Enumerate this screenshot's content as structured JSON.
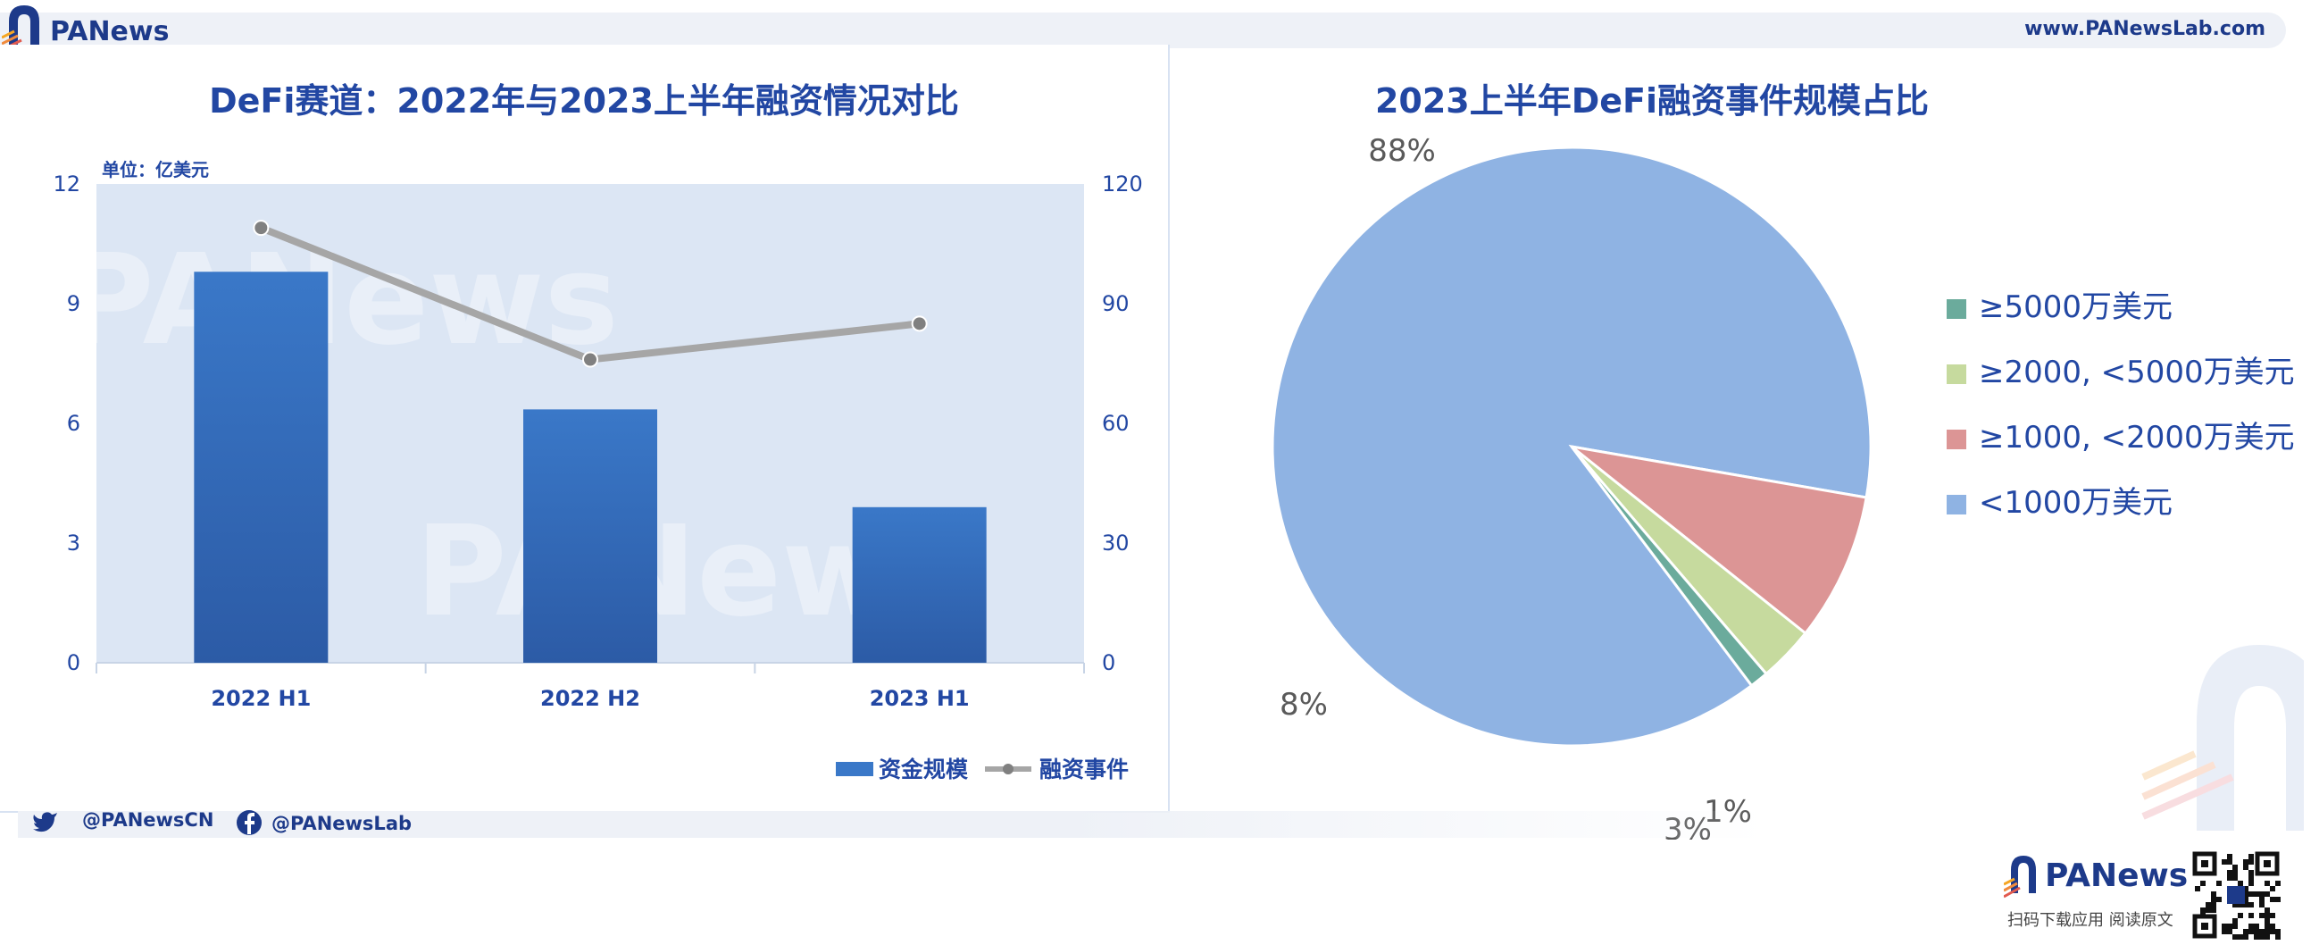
{
  "header": {
    "brand": "PANews",
    "url": "www.PANewsLab.com"
  },
  "footer": {
    "twitter": "@PANewsCN",
    "facebook": "@PANewsLab",
    "brand": "PANews",
    "caption": "扫码下载应用  阅读原文"
  },
  "watermark": "PANews",
  "colors": {
    "bar": "#3a78c8",
    "line": "#a6a6a6",
    "pie_large": "#8fb3e3",
    "pie_mid": "#dc9595",
    "pie_small": "#c6da9e",
    "pie_tiny": "#6bab9c",
    "title": "#2247a3"
  },
  "chart_data": [
    {
      "type": "bar",
      "title": "DeFi赛道：2022年与2023上半年融资情况对比",
      "unit_label": "单位：亿美元",
      "categories": [
        "2022 H1",
        "2022 H2",
        "2023 H1"
      ],
      "series": [
        {
          "name": "资金规模",
          "type": "bar",
          "axis": "left",
          "values": [
            9.8,
            6.35,
            3.9
          ]
        },
        {
          "name": "融资事件",
          "type": "line",
          "axis": "right",
          "values": [
            109,
            76,
            85
          ]
        }
      ],
      "ylim_left": [
        0,
        12
      ],
      "ylim_right": [
        0,
        120
      ],
      "yticks_left": [
        "0",
        "3",
        "6",
        "9",
        "12"
      ],
      "yticks_right": [
        "0",
        "30",
        "60",
        "90",
        "120"
      ],
      "legend_position": "bottom-right"
    },
    {
      "type": "pie",
      "title": "2023上半年DeFi融资事件规模占比",
      "slices": [
        {
          "label": "<1000万美元",
          "value": 88,
          "text": "88%"
        },
        {
          "label": "≥1000, <2000万美元",
          "value": 8,
          "text": "8%"
        },
        {
          "label": "≥2000, <5000万美元",
          "value": 3,
          "text": "3%"
        },
        {
          "label": "≥5000万美元",
          "value": 1,
          "text": "1%"
        }
      ],
      "legend": [
        "≥5000万美元",
        "≥2000, <5000万美元",
        "≥1000, <2000万美元",
        "<1000万美元"
      ],
      "legend_position": "right"
    }
  ]
}
